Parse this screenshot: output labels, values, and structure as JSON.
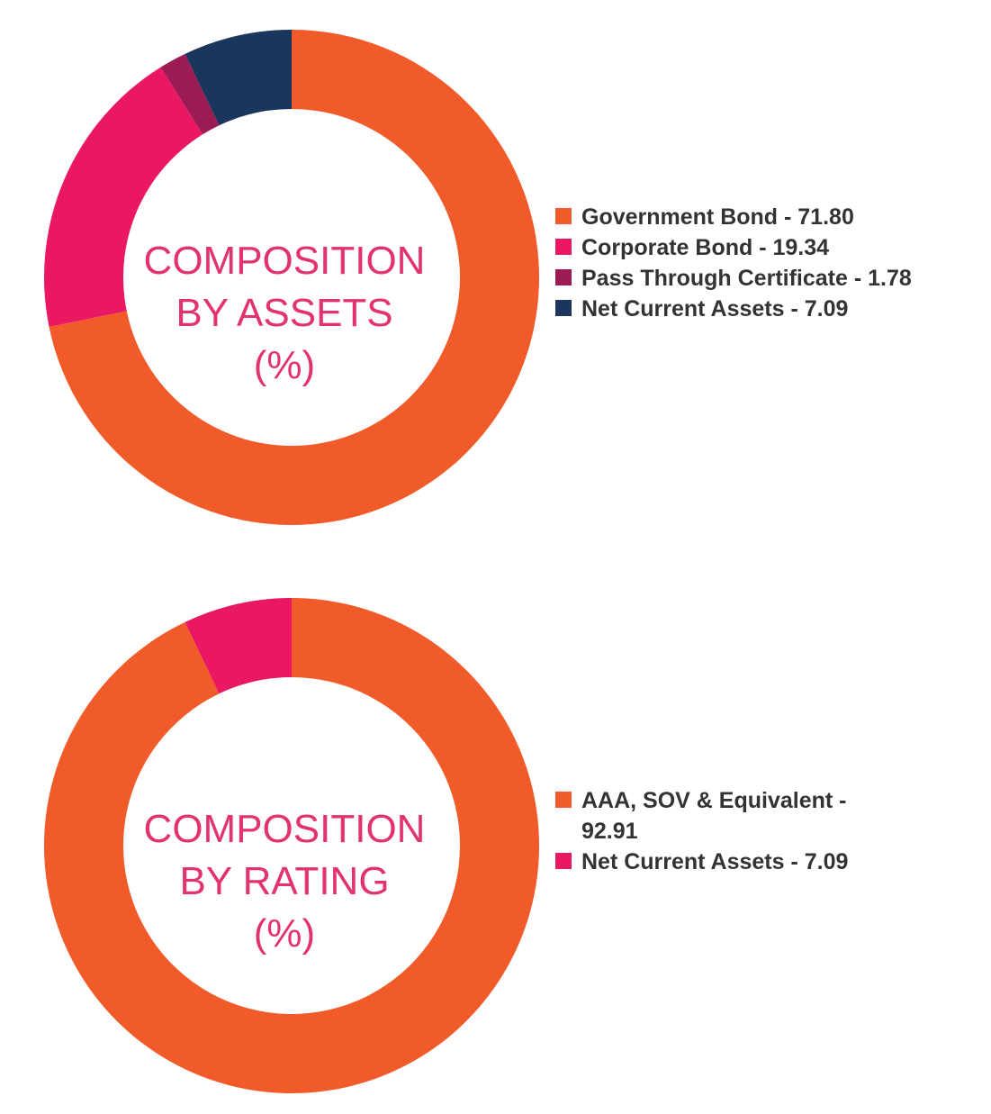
{
  "chart_data": [
    {
      "type": "pie",
      "title_lines": [
        "COMPOSITION",
        "BY ASSETS",
        "(%)"
      ],
      "series": [
        {
          "name": "Government Bond",
          "value": 71.8,
          "color": "#f15a29",
          "legend": "Government Bond - 71.80"
        },
        {
          "name": "Corporate Bond",
          "value": 19.34,
          "color": "#ea1763",
          "legend": "Corporate Bond - 19.34"
        },
        {
          "name": "Pass Through Certificate",
          "value": 1.78,
          "color": "#9c1b55",
          "legend": "Pass Through Certificate - 1.78"
        },
        {
          "name": "Net Current Assets",
          "value": 7.09,
          "color": "#1b365d",
          "legend": "Net Current Assets - 7.09"
        }
      ],
      "legend_position": "right"
    },
    {
      "type": "pie",
      "title_lines": [
        "COMPOSITION",
        "BY RATING",
        "(%)"
      ],
      "series": [
        {
          "name": "AAA, SOV & Equivalent",
          "value": 92.91,
          "color": "#f15a29",
          "legend": "AAA, SOV & Equivalent - 92.91"
        },
        {
          "name": "Net Current Assets",
          "value": 7.09,
          "color": "#ea1763",
          "legend": "Net Current Assets - 7.09"
        }
      ],
      "legend_position": "right"
    }
  ],
  "colors": {
    "title": "#e2336f",
    "legend_text": "#333333"
  }
}
